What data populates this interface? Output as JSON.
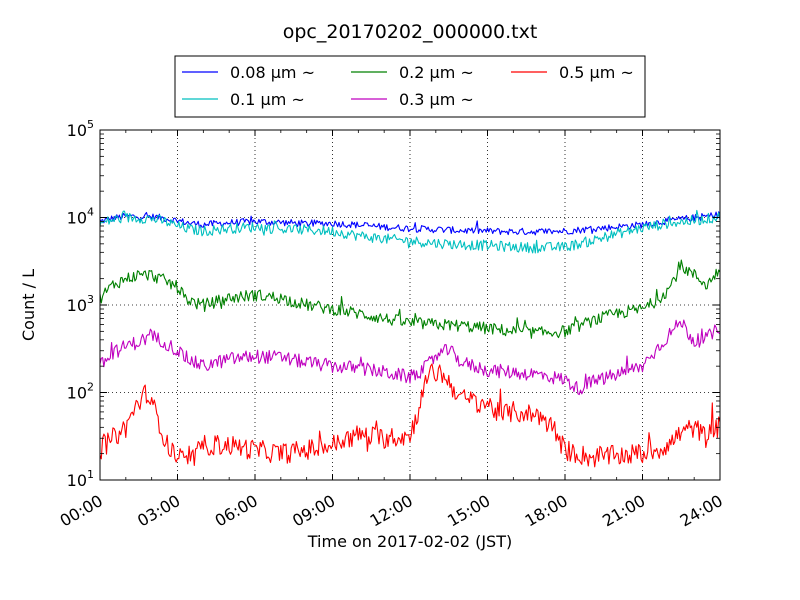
{
  "chart_data": {
    "type": "line",
    "title": "opc_20170202_000000.txt",
    "xlabel": "Time on 2017-02-02 (JST)",
    "ylabel": "Count / L",
    "x_ticks": [
      "00:00",
      "03:00",
      "06:00",
      "09:00",
      "12:00",
      "15:00",
      "18:00",
      "21:00",
      "24:00"
    ],
    "xlim_hours": [
      0,
      24
    ],
    "y_scale": "log",
    "ylim": [
      10,
      100000
    ],
    "y_ticks": [
      {
        "base": "10",
        "exp": "1"
      },
      {
        "base": "10",
        "exp": "2"
      },
      {
        "base": "10",
        "exp": "3"
      },
      {
        "base": "10",
        "exp": "4"
      },
      {
        "base": "10",
        "exp": "5"
      }
    ],
    "grid": true,
    "legend_position": "top-center, above axes",
    "series": [
      {
        "name": "0.08 μm ~",
        "color": "#0000ff",
        "x_hours": [
          0,
          0.5,
          1,
          1.5,
          2,
          2.5,
          3,
          3.5,
          4,
          5,
          6,
          7,
          8,
          9,
          10,
          11,
          12,
          13,
          14,
          15,
          16,
          17,
          18,
          19,
          20,
          21,
          22,
          23,
          24
        ],
        "values": [
          9000,
          9800,
          10300,
          10300,
          10200,
          9800,
          9200,
          8600,
          8300,
          8700,
          9000,
          8800,
          8500,
          8600,
          8200,
          7800,
          7500,
          7300,
          7100,
          7000,
          6900,
          6900,
          7000,
          7400,
          7800,
          8300,
          9200,
          9900,
          10800
        ],
        "noise": 0.04
      },
      {
        "name": "0.1 μm ~",
        "color": "#00bfbf",
        "x_hours": [
          0,
          0.5,
          1,
          1.5,
          2,
          2.5,
          3,
          3.5,
          4,
          5,
          6,
          7,
          8,
          9,
          10,
          11,
          12,
          13,
          14,
          15,
          16,
          17,
          18,
          19,
          20,
          21,
          22,
          23,
          24
        ],
        "values": [
          8500,
          9400,
          9900,
          9900,
          9700,
          9000,
          8000,
          7300,
          7000,
          7500,
          7800,
          7400,
          7200,
          7000,
          6200,
          5700,
          5400,
          5100,
          4900,
          4800,
          4600,
          4500,
          4600,
          5400,
          6500,
          7600,
          8600,
          9200,
          10200
        ],
        "noise": 0.06
      },
      {
        "name": "0.2 μm ~",
        "color": "#008000",
        "x_hours": [
          0,
          0.5,
          1,
          1.5,
          2,
          2.5,
          3,
          3.3,
          3.7,
          4,
          5,
          6,
          7,
          8,
          9,
          10,
          11,
          12,
          13,
          14,
          15,
          16,
          17,
          18,
          19,
          20,
          21,
          21.5,
          22,
          22.5,
          23,
          23.5,
          24
        ],
        "values": [
          1200,
          1700,
          2000,
          2200,
          2200,
          1900,
          1600,
          1200,
          1050,
          1000,
          1200,
          1300,
          1200,
          1000,
          900,
          800,
          700,
          620,
          600,
          580,
          540,
          500,
          480,
          500,
          650,
          800,
          900,
          1100,
          1500,
          2800,
          2200,
          1700,
          2600
        ],
        "noise": 0.07
      },
      {
        "name": "0.3 μm ~",
        "color": "#bf00bf",
        "x_hours": [
          0,
          0.5,
          1,
          1.5,
          2,
          2.5,
          3,
          3.5,
          4,
          5,
          6,
          7,
          8,
          9,
          10,
          11,
          12,
          12.5,
          13,
          13.5,
          14,
          15,
          16,
          17,
          18,
          18.5,
          19,
          20,
          21,
          21.5,
          22,
          22.5,
          23,
          23.5,
          24
        ],
        "values": [
          200,
          280,
          340,
          380,
          440,
          380,
          300,
          230,
          200,
          240,
          260,
          250,
          220,
          200,
          190,
          170,
          150,
          180,
          260,
          310,
          220,
          180,
          170,
          160,
          140,
          110,
          130,
          160,
          200,
          300,
          450,
          650,
          380,
          420,
          550
        ],
        "noise": 0.08
      },
      {
        "name": "0.5 μm ~",
        "color": "#ff0000",
        "x_hours": [
          0,
          0.5,
          1,
          1.4,
          1.8,
          2.2,
          2.6,
          3,
          3.5,
          4,
          5,
          6,
          7,
          8,
          9,
          10,
          11,
          12,
          12.3,
          12.7,
          13.2,
          14,
          15,
          15.5,
          16,
          17,
          17.5,
          18,
          19,
          20,
          21,
          21.5,
          22,
          22.5,
          23,
          23.5,
          24
        ],
        "values": [
          22,
          30,
          40,
          70,
          100,
          55,
          25,
          18,
          16,
          25,
          25,
          22,
          20,
          22,
          25,
          33,
          30,
          32,
          60,
          160,
          170,
          85,
          75,
          55,
          60,
          55,
          40,
          22,
          18,
          19,
          20,
          22,
          25,
          35,
          40,
          30,
          42
        ],
        "noise": 0.12
      }
    ]
  }
}
